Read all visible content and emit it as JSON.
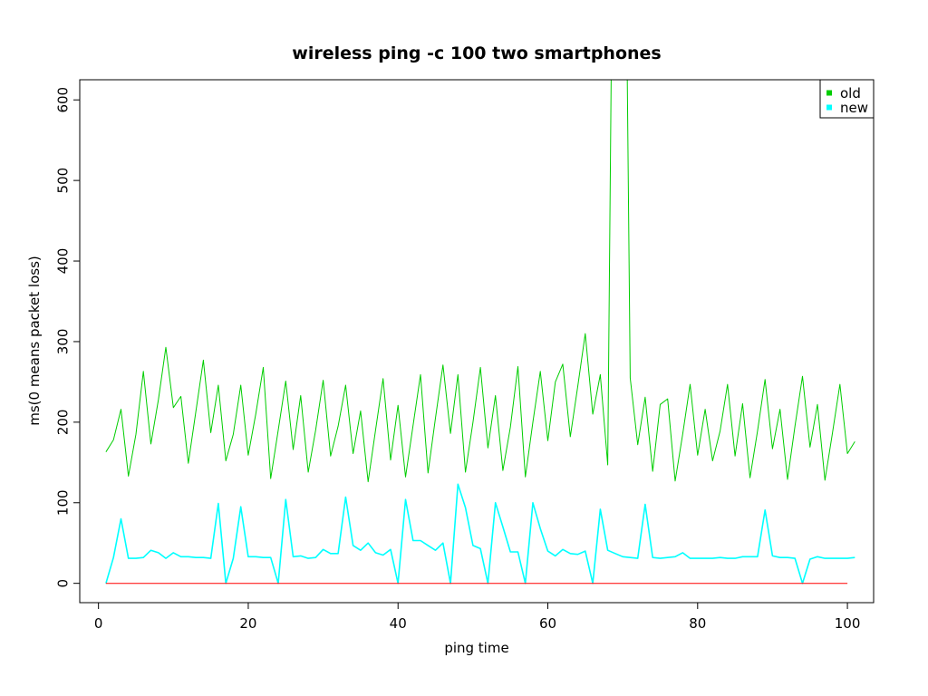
{
  "chart_data": {
    "type": "line",
    "title": "wireless ping -c 100 two smartphones",
    "xlabel": "ping time",
    "ylabel": "ms(0 means packet loss)",
    "xlim": [
      -2.5,
      103.5
    ],
    "ylim": [
      -24,
      625
    ],
    "x_ticks": [
      "0",
      "20",
      "40",
      "60",
      "80",
      "100"
    ],
    "x_tick_values": [
      0,
      20,
      40,
      60,
      80,
      100
    ],
    "y_ticks": [
      "0",
      "100",
      "200",
      "300",
      "400",
      "500",
      "600"
    ],
    "y_tick_values": [
      0,
      100,
      200,
      300,
      400,
      500,
      600
    ],
    "grid": false,
    "legend_position": "top-right",
    "legend": [
      {
        "label": "old",
        "color": "#00cd00"
      },
      {
        "label": "new",
        "color": "#00ffff"
      }
    ],
    "series": [
      {
        "name": "old",
        "color": "#00cd00",
        "x_start": 1,
        "values": [
          163,
          178,
          216,
          133,
          185,
          263,
          173,
          228,
          293,
          218,
          232,
          149,
          213,
          277,
          187,
          246,
          152,
          185,
          246,
          159,
          210,
          268,
          130,
          190,
          251,
          166,
          233,
          138,
          190,
          252,
          158,
          195,
          246,
          161,
          214,
          126,
          190,
          254,
          153,
          221,
          132,
          196,
          259,
          137,
          205,
          271,
          186,
          259,
          138,
          200,
          268,
          168,
          233,
          140,
          194,
          269,
          132,
          200,
          263,
          177,
          250,
          272,
          182,
          245,
          310,
          210,
          259,
          147,
          1200,
          1200,
          255,
          172,
          231,
          139,
          222,
          229,
          127,
          185,
          247,
          159,
          216,
          152,
          189,
          247,
          158,
          223,
          131,
          189,
          253,
          167,
          216,
          129,
          195,
          257,
          169,
          222,
          128,
          186,
          247,
          161,
          176
        ]
      },
      {
        "name": "new",
        "color": "#00ffff",
        "x_start": 1,
        "values": [
          0,
          32,
          80,
          31,
          31,
          32,
          41,
          38,
          31,
          38,
          33,
          33,
          32,
          32,
          31,
          99,
          0,
          31,
          95,
          33,
          33,
          32,
          32,
          0,
          104,
          33,
          34,
          31,
          32,
          42,
          37,
          37,
          107,
          47,
          41,
          50,
          38,
          35,
          42,
          0,
          104,
          53,
          53,
          47,
          41,
          50,
          0,
          123,
          94,
          47,
          43,
          0,
          100,
          70,
          39,
          39,
          0,
          100,
          68,
          40,
          34,
          42,
          37,
          36,
          40,
          0,
          92,
          41,
          37,
          33,
          32,
          31,
          98,
          32,
          31,
          32,
          33,
          38,
          31,
          31,
          31,
          31,
          32,
          31,
          31,
          33,
          33,
          33,
          91,
          34,
          32,
          32,
          31,
          0,
          30,
          33,
          31,
          31,
          31,
          31,
          32
        ]
      },
      {
        "name": "",
        "color": "#ff0000",
        "x": [
          1,
          100
        ],
        "values": [
          0,
          0
        ]
      }
    ]
  }
}
